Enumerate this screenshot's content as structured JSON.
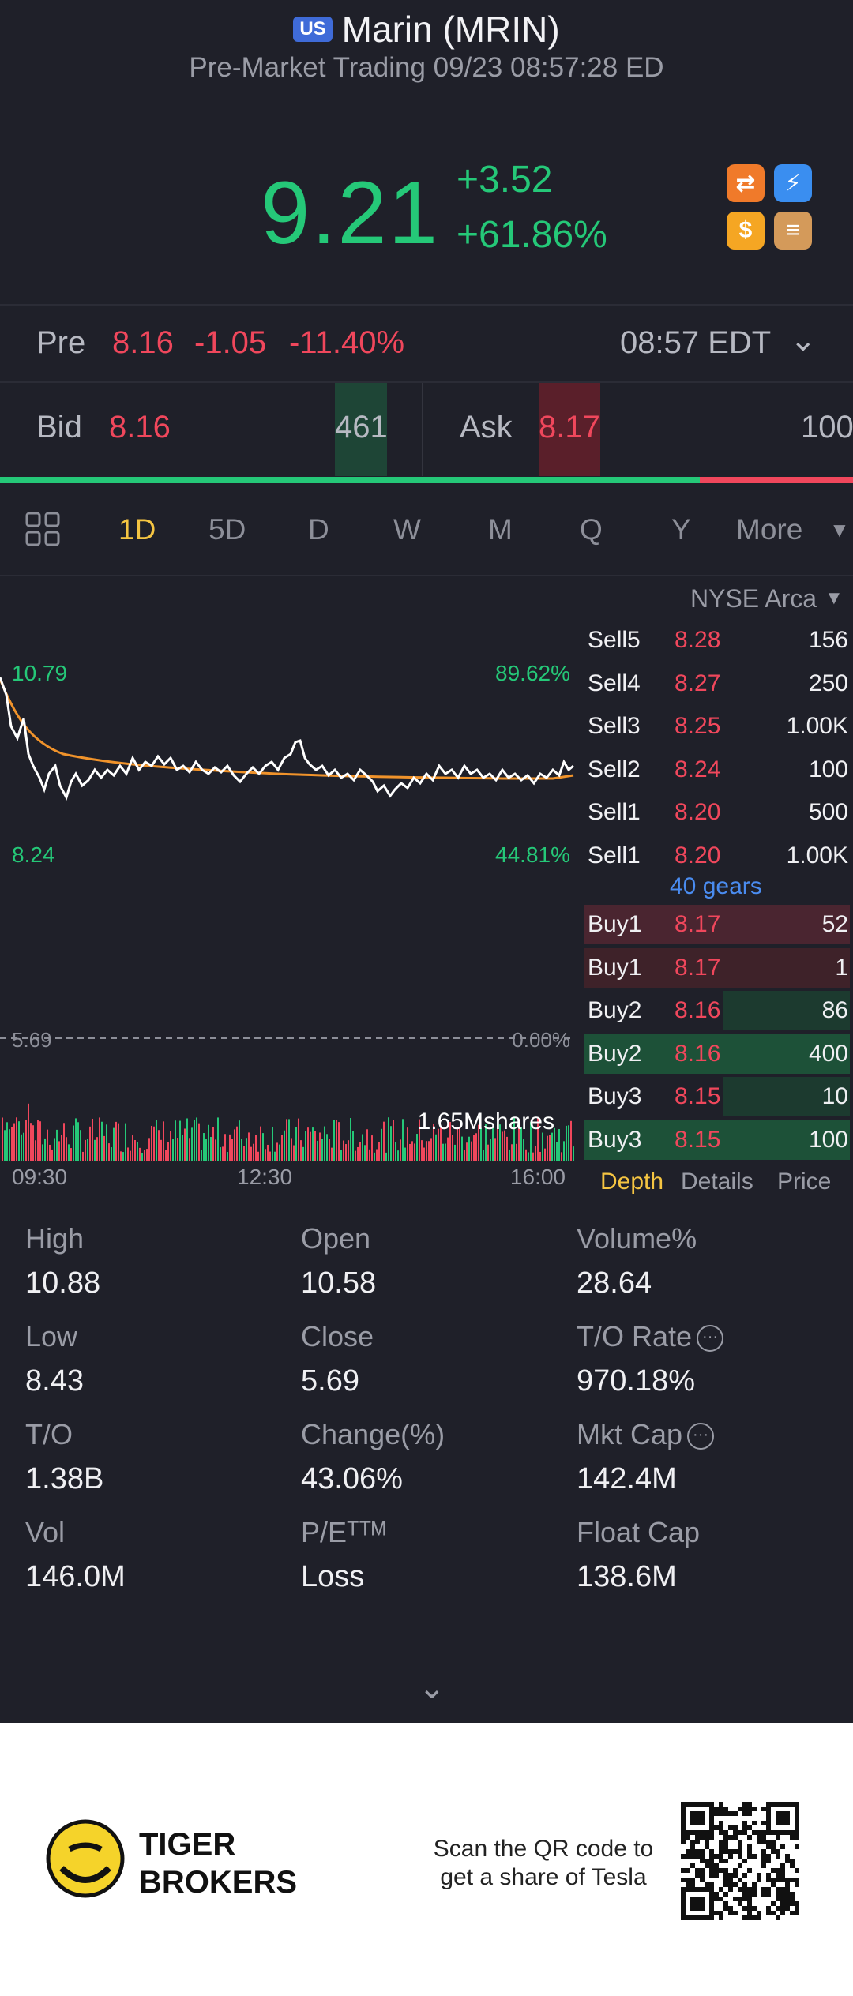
{
  "header": {
    "market_badge": "US",
    "title": "Marin (MRIN)",
    "subtitle": "Pre-Market Trading 09/23 08:57:28 ED"
  },
  "quote": {
    "price": "9.21",
    "change": "+3.52",
    "change_pct": "+61.86%",
    "icons": [
      "swap-icon",
      "lightning-icon",
      "dollar-icon",
      "stack-icon"
    ]
  },
  "premarket": {
    "label": "Pre",
    "price": "8.16",
    "change": "-1.05",
    "change_pct": "-11.40%",
    "time": "08:57 EDT"
  },
  "bidask": {
    "bid_label": "Bid",
    "bid_price": "8.16",
    "bid_size": "461",
    "ask_label": "Ask",
    "ask_price": "8.17",
    "ask_size": "100",
    "bid_ratio": 0.82
  },
  "tabs": {
    "items": [
      "1D",
      "5D",
      "D",
      "W",
      "M",
      "Q",
      "Y"
    ],
    "more": "More",
    "active": "1D"
  },
  "chart": {
    "exchange": "NYSE Arca",
    "high_price": "10.79",
    "high_pct": "89.62%",
    "low_price": "8.24",
    "low_pct": "44.81%",
    "ref_price": "5.69",
    "ref_pct": "0.00%",
    "volume_label": "1.65Mshares",
    "times": [
      "09:30",
      "12:30",
      "16:00"
    ]
  },
  "chart_data": {
    "type": "line",
    "x": [
      "09:30",
      "12:30",
      "16:00"
    ],
    "ylim": [
      8.24,
      10.79
    ],
    "series": []
  },
  "orderbook": {
    "sells": [
      {
        "label": "Sell5",
        "price": "8.28",
        "size": "156"
      },
      {
        "label": "Sell4",
        "price": "8.27",
        "size": "250"
      },
      {
        "label": "Sell3",
        "price": "8.25",
        "size": "1.00K"
      },
      {
        "label": "Sell2",
        "price": "8.24",
        "size": "100"
      },
      {
        "label": "Sell1",
        "price": "8.20",
        "size": "500"
      },
      {
        "label": "Sell1",
        "price": "8.20",
        "size": "1.00K"
      }
    ],
    "gears": "40 gears",
    "buys": [
      {
        "label": "Buy1",
        "price": "8.17",
        "size": "52"
      },
      {
        "label": "Buy1",
        "price": "8.17",
        "size": "1"
      },
      {
        "label": "Buy2",
        "price": "8.16",
        "size": "86"
      },
      {
        "label": "Buy2",
        "price": "8.16",
        "size": "400"
      },
      {
        "label": "Buy3",
        "price": "8.15",
        "size": "10"
      },
      {
        "label": "Buy3",
        "price": "8.15",
        "size": "100"
      }
    ],
    "tabs": [
      "Depth",
      "Details",
      "Price"
    ]
  },
  "stats": [
    {
      "label": "High",
      "value": "10.88"
    },
    {
      "label": "Open",
      "value": "10.58"
    },
    {
      "label": "Volume%",
      "value": "28.64"
    },
    {
      "label": "Low",
      "value": "8.43"
    },
    {
      "label": "Close",
      "value": "5.69"
    },
    {
      "label": "T/O Rate",
      "value": "970.18%"
    },
    {
      "label": "T/O",
      "value": "1.38B"
    },
    {
      "label": "Change(%)",
      "value": "43.06%"
    },
    {
      "label": "Mkt Cap",
      "value": "142.4M"
    },
    {
      "label": "Vol",
      "value": "146.0M"
    },
    {
      "label": "P/Eᵀᵀᴹ",
      "value": "Loss"
    },
    {
      "label": "Float Cap",
      "value": "138.6M"
    }
  ],
  "footer": {
    "brand_line1": "TIGER",
    "brand_line2": "BROKERS",
    "scan_line1": "Scan the QR code to",
    "scan_line2": "get a share of Tesla"
  },
  "colors": {
    "up": "#25c878",
    "down": "#f0475c",
    "accent": "#f5c542",
    "background": "#1f2029"
  }
}
